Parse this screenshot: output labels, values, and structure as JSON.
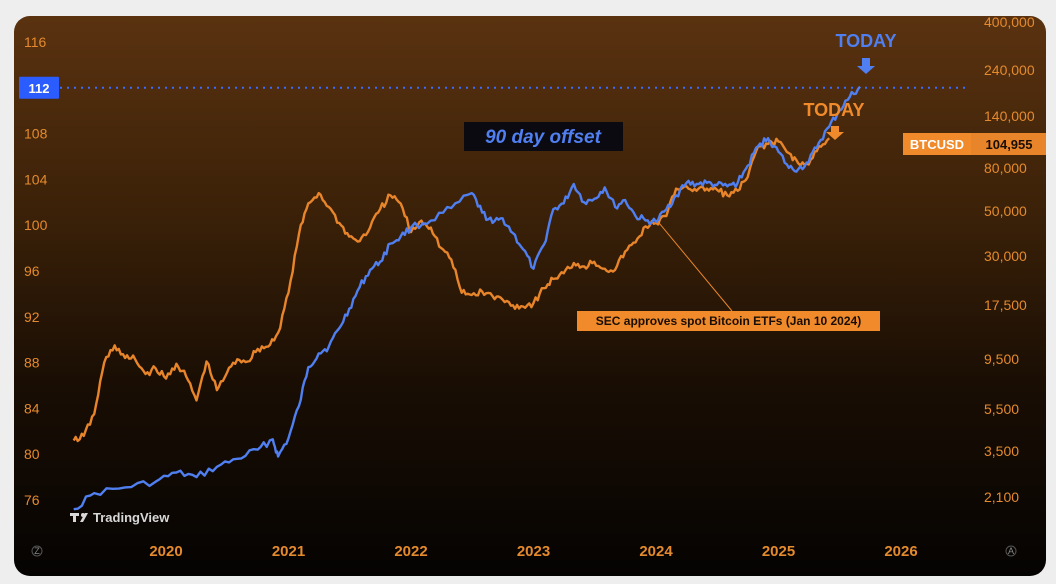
{
  "chart_data": {
    "type": "line",
    "title": "",
    "left_axis": {
      "ticks": [
        "116",
        "112",
        "108",
        "104",
        "100",
        "96",
        "92",
        "88",
        "84",
        "80",
        "76"
      ],
      "range": [
        74,
        117
      ]
    },
    "right_axis": {
      "scale": "log",
      "ticks": [
        "400,000",
        "240,000",
        "140,000",
        "80,000",
        "50,000",
        "30,000",
        "17,500",
        "9,500",
        "5,500",
        "3,500",
        "2,100"
      ]
    },
    "x_axis": {
      "ticks": [
        "2020",
        "2021",
        "2022",
        "2023",
        "2024",
        "2025",
        "2026"
      ]
    },
    "grid": false,
    "series": [
      {
        "name": "",
        "color": "#4f7ff0",
        "axis": "left",
        "points": [
          [
            "2019-04-01",
            75.2
          ],
          [
            "2019-06-01",
            76.6
          ],
          [
            "2019-09-01",
            77.1
          ],
          [
            "2019-12-01",
            77.6
          ],
          [
            "2020-02-01",
            78.4
          ],
          [
            "2020-04-01",
            78.0
          ],
          [
            "2020-06-01",
            78.9
          ],
          [
            "2020-08-01",
            79.6
          ],
          [
            "2020-10-01",
            80.4
          ],
          [
            "2020-11-15",
            81.3
          ],
          [
            "2020-12-01",
            79.8
          ],
          [
            "2021-01-01",
            81.4
          ],
          [
            "2021-02-01",
            84.2
          ],
          [
            "2021-03-01",
            87.6
          ],
          [
            "2021-04-01",
            88.8
          ],
          [
            "2021-05-01",
            89.4
          ],
          [
            "2021-06-01",
            91.0
          ],
          [
            "2021-07-01",
            92.7
          ],
          [
            "2021-08-01",
            94.6
          ],
          [
            "2021-09-01",
            96.1
          ],
          [
            "2021-10-01",
            96.8
          ],
          [
            "2021-11-01",
            98.4
          ],
          [
            "2021-12-01",
            99.0
          ],
          [
            "2022-01-01",
            99.8
          ],
          [
            "2022-03-01",
            100.4
          ],
          [
            "2022-05-01",
            101.5
          ],
          [
            "2022-07-01",
            102.8
          ],
          [
            "2022-08-01",
            101.1
          ],
          [
            "2022-09-01",
            100.2
          ],
          [
            "2022-10-01",
            100.6
          ],
          [
            "2022-11-01",
            99.3
          ],
          [
            "2022-12-01",
            97.9
          ],
          [
            "2023-01-01",
            96.2
          ],
          [
            "2023-02-01",
            98.3
          ],
          [
            "2023-03-01",
            101.4
          ],
          [
            "2023-04-01",
            101.9
          ],
          [
            "2023-05-01",
            103.6
          ],
          [
            "2023-06-01",
            102.0
          ],
          [
            "2023-07-01",
            102.3
          ],
          [
            "2023-08-01",
            103.3
          ],
          [
            "2023-09-01",
            101.6
          ],
          [
            "2023-10-01",
            102.2
          ],
          [
            "2023-11-01",
            100.8
          ],
          [
            "2023-12-01",
            100.4
          ],
          [
            "2024-01-01",
            100.3
          ],
          [
            "2024-02-01",
            101.4
          ],
          [
            "2024-03-01",
            102.6
          ],
          [
            "2024-04-01",
            103.7
          ],
          [
            "2024-05-01",
            103.6
          ],
          [
            "2024-06-01",
            103.7
          ],
          [
            "2024-07-01",
            103.5
          ],
          [
            "2024-08-01",
            103.4
          ],
          [
            "2024-09-01",
            103.7
          ],
          [
            "2024-10-01",
            105.2
          ],
          [
            "2024-11-01",
            106.9
          ],
          [
            "2024-12-01",
            107.6
          ],
          [
            "2025-01-01",
            106.4
          ],
          [
            "2025-02-01",
            105.0
          ],
          [
            "2025-03-01",
            104.9
          ],
          [
            "2025-04-01",
            105.5
          ],
          [
            "2025-05-01",
            107.2
          ],
          [
            "2025-06-01",
            108.6
          ],
          [
            "2025-07-01",
            110.0
          ],
          [
            "2025-08-01",
            111.2
          ],
          [
            "2025-09-01",
            112.1
          ]
        ]
      },
      {
        "name": "",
        "color": "#e8852a",
        "axis": "left",
        "points": [
          [
            "2019-04-01",
            81.2
          ],
          [
            "2019-05-01",
            81.6
          ],
          [
            "2019-06-01",
            83.5
          ],
          [
            "2019-07-01",
            88.0
          ],
          [
            "2019-08-01",
            89.5
          ],
          [
            "2019-09-01",
            88.4
          ],
          [
            "2019-10-01",
            88.3
          ],
          [
            "2019-11-01",
            87.0
          ],
          [
            "2019-12-01",
            87.5
          ],
          [
            "2020-01-01",
            86.6
          ],
          [
            "2020-02-01",
            87.9
          ],
          [
            "2020-03-01",
            86.8
          ],
          [
            "2020-04-01",
            84.7
          ],
          [
            "2020-05-01",
            88.1
          ],
          [
            "2020-06-01",
            85.6
          ],
          [
            "2020-07-01",
            87.1
          ],
          [
            "2020-08-01",
            88.3
          ],
          [
            "2020-09-01",
            88.1
          ],
          [
            "2020-10-01",
            89.2
          ],
          [
            "2020-11-01",
            89.4
          ],
          [
            "2020-12-01",
            90.6
          ],
          [
            "2021-01-01",
            94.1
          ],
          [
            "2021-02-01",
            99.2
          ],
          [
            "2021-03-01",
            101.9
          ],
          [
            "2021-04-01",
            102.8
          ],
          [
            "2021-05-01",
            101.6
          ],
          [
            "2021-06-01",
            100.2
          ],
          [
            "2021-07-01",
            99.0
          ],
          [
            "2021-08-01",
            98.6
          ],
          [
            "2021-09-01",
            99.8
          ],
          [
            "2021-10-01",
            101.4
          ],
          [
            "2021-11-01",
            102.6
          ],
          [
            "2021-12-01",
            101.9
          ],
          [
            "2022-01-01",
            99.4
          ],
          [
            "2022-02-01",
            100.4
          ],
          [
            "2022-03-01",
            99.8
          ],
          [
            "2022-04-01",
            98.0
          ],
          [
            "2022-05-01",
            97.0
          ],
          [
            "2022-06-01",
            94.1
          ],
          [
            "2022-07-01",
            93.9
          ],
          [
            "2022-08-01",
            94.2
          ],
          [
            "2022-09-01",
            93.8
          ],
          [
            "2022-10-01",
            93.5
          ],
          [
            "2022-11-01",
            93.0
          ],
          [
            "2022-12-01",
            92.9
          ],
          [
            "2023-01-01",
            93.2
          ],
          [
            "2023-02-01",
            94.5
          ],
          [
            "2023-03-01",
            95.3
          ],
          [
            "2023-04-01",
            95.8
          ],
          [
            "2023-05-01",
            96.7
          ],
          [
            "2023-06-01",
            96.4
          ],
          [
            "2023-07-01",
            96.8
          ],
          [
            "2023-08-01",
            96.2
          ],
          [
            "2023-09-01",
            96.1
          ],
          [
            "2023-10-01",
            97.7
          ],
          [
            "2023-11-01",
            98.5
          ],
          [
            "2023-12-01",
            99.9
          ],
          [
            "2024-01-01",
            100.2
          ],
          [
            "2024-02-01",
            100.8
          ],
          [
            "2024-03-01",
            103.2
          ],
          [
            "2024-04-01",
            103.4
          ],
          [
            "2024-05-01",
            103.0
          ],
          [
            "2024-06-01",
            103.2
          ],
          [
            "2024-07-01",
            103.1
          ],
          [
            "2024-08-01",
            102.6
          ],
          [
            "2024-09-01",
            103.0
          ],
          [
            "2024-10-01",
            104.2
          ],
          [
            "2024-11-01",
            106.9
          ],
          [
            "2024-12-01",
            107.1
          ],
          [
            "2025-01-01",
            107.3
          ],
          [
            "2025-02-01",
            106.3
          ],
          [
            "2025-03-01",
            105.4
          ],
          [
            "2025-04-01",
            105.3
          ],
          [
            "2025-05-01",
            106.9
          ],
          [
            "2025-06-01",
            107.6
          ]
        ]
      }
    ],
    "annotations": [
      {
        "text": "TODAY",
        "color": "#4f7ff0"
      },
      {
        "text": "TODAY",
        "color": "#f08a2a"
      },
      {
        "text": "90 day offset"
      },
      {
        "text": "SEC approves spot Bitcoin ETFs (Jan 10 2024)",
        "date": "2024-01-10"
      }
    ],
    "reference_line": {
      "value": 112,
      "label": "112",
      "color": "#3d6bff"
    },
    "price_label": {
      "symbol": "BTCUSD",
      "value": "104,955"
    }
  },
  "watermark": "TradingView",
  "corner_marks": {
    "left": "Z",
    "right": "A"
  }
}
